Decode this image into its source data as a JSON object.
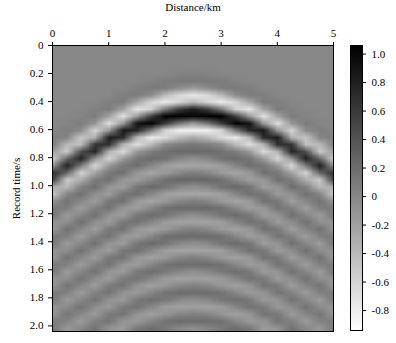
{
  "chart_data": {
    "type": "heatmap",
    "xlabel": "Distance/km",
    "ylabel": "Record time/s",
    "x": [
      0,
      0.25,
      0.5,
      0.75,
      1,
      1.25,
      1.5,
      1.75,
      2,
      2.25,
      2.5,
      2.75,
      3,
      3.25,
      3.5,
      3.75,
      4,
      4.25,
      4.5,
      4.75,
      5
    ],
    "y": [
      0,
      0.05,
      0.1,
      0.15,
      0.2,
      0.25,
      0.3,
      0.35,
      0.4,
      0.45,
      0.5,
      0.55,
      0.6,
      0.65,
      0.7,
      0.75,
      0.8,
      0.85,
      0.9,
      0.95,
      1,
      1.05,
      1.1,
      1.15,
      1.2,
      1.25,
      1.3,
      1.35,
      1.4,
      1.45,
      1.5,
      1.55,
      1.6,
      1.65,
      1.7,
      1.75,
      1.8,
      1.85,
      1.9,
      1.95,
      2
    ],
    "values": [
      [
        0,
        0,
        0,
        0,
        0,
        0,
        0,
        0,
        0,
        0,
        0,
        0,
        0,
        0,
        0,
        0,
        0,
        0,
        0,
        0,
        0
      ],
      [
        0,
        0,
        0,
        0,
        0,
        0,
        0,
        0,
        0,
        0,
        0,
        0,
        0,
        0,
        0,
        0,
        0,
        0,
        0,
        0,
        0
      ],
      [
        0,
        0,
        0,
        0,
        0,
        0,
        0,
        0,
        0,
        0,
        0,
        0,
        0,
        0,
        0,
        0,
        0,
        0,
        0,
        0,
        0
      ],
      [
        0,
        0,
        0,
        0,
        0,
        0,
        0,
        0,
        0,
        0,
        0,
        0,
        0,
        0,
        0,
        0,
        0,
        0,
        0,
        0,
        0
      ],
      [
        0,
        0,
        0,
        0,
        0,
        0,
        0,
        0,
        0,
        0.03,
        0.05,
        0.03,
        0,
        0,
        0,
        0,
        0,
        0,
        0,
        0,
        0
      ],
      [
        0,
        0,
        0,
        0,
        0,
        0,
        0,
        0.03,
        0.08,
        0.11,
        0.11,
        0.11,
        0.08,
        0.03,
        0,
        0,
        0,
        0,
        0,
        0,
        0
      ],
      [
        0,
        0,
        0,
        0,
        0,
        0,
        0.06,
        0.1,
        0.07,
        -0.04,
        -0.15,
        -0.04,
        0.07,
        0.1,
        0.06,
        0,
        0,
        0,
        0,
        0,
        0
      ],
      [
        0,
        0,
        0,
        0,
        0,
        0.06,
        0.09,
        -0.04,
        -0.4,
        -0.66,
        -0.77,
        -0.66,
        -0.4,
        -0.04,
        0.09,
        0.06,
        0,
        0,
        0,
        0,
        0
      ],
      [
        0,
        0,
        0,
        0,
        0.06,
        0.09,
        -0.24,
        -0.63,
        -0.81,
        -0.61,
        -0.41,
        -0.61,
        -0.81,
        -0.63,
        -0.24,
        0.09,
        0.06,
        0,
        0,
        0,
        0
      ],
      [
        0,
        0,
        0,
        0.04,
        0.08,
        -0.23,
        -0.75,
        -0.58,
        0.12,
        0.6,
        0.83,
        0.6,
        0.12,
        -0.58,
        -0.75,
        -0.23,
        0.08,
        0.04,
        0,
        0,
        0
      ],
      [
        0,
        0,
        0.02,
        0.09,
        -0.22,
        -0.71,
        -0.14,
        0.57,
        1.08,
        1.1,
        1.0,
        1.1,
        1.08,
        0.57,
        -0.14,
        -0.71,
        -0.22,
        0.09,
        0.02,
        0,
        0
      ],
      [
        0,
        0.01,
        0.08,
        -0.12,
        -0.68,
        -0.13,
        0.9,
        1.04,
        0.59,
        0.12,
        -0.15,
        0.12,
        0.59,
        1.04,
        0.9,
        -0.13,
        -0.68,
        -0.12,
        0.08,
        0.01,
        0
      ],
      [
        0,
        0.07,
        -0.03,
        -0.6,
        -0.12,
        0.86,
        0.75,
        0.11,
        -0.6,
        -0.82,
        -0.83,
        -0.82,
        -0.6,
        0.11,
        0.75,
        0.86,
        -0.12,
        -0.6,
        -0.03,
        0.07,
        0
      ],
      [
        0.05,
        0.02,
        -0.5,
        -0.32,
        0.82,
        0.71,
        -0.37,
        -0.78,
        -0.65,
        -0.41,
        -0.27,
        -0.41,
        -0.65,
        -0.78,
        -0.37,
        0.71,
        0.82,
        -0.32,
        -0.5,
        0.02,
        0.05
      ],
      [
        0.07,
        -0.39,
        -0.46,
        0.65,
        0.68,
        -0.35,
        -0.69,
        -0.39,
        -0.04,
        0.07,
        0.12,
        0.07,
        -0.04,
        -0.39,
        -0.69,
        -0.35,
        0.68,
        0.65,
        -0.46,
        -0.39,
        0.07
      ],
      [
        -0.18,
        -0.54,
        0.45,
        0.78,
        -0.34,
        -0.66,
        -0.14,
        0.07,
        0.18,
        0.23,
        0.24,
        0.23,
        0.18,
        0.07,
        -0.14,
        -0.66,
        -0.34,
        0.78,
        0.45,
        -0.54,
        -0.18
      ],
      [
        -0.56,
        0.26,
        0.82,
        -0.12,
        -0.63,
        -0.13,
        0.14,
        0.22,
        0.16,
        0,
        -0.08,
        0,
        0.16,
        0.22,
        0.14,
        -0.13,
        -0.63,
        -0.12,
        0.82,
        0.26,
        -0.56
      ],
      [
        -0.1,
        0.82,
        0.09,
        -0.65,
        -0.12,
        0.13,
        0.19,
        0,
        -0.19,
        -0.25,
        -0.24,
        -0.25,
        -0.19,
        0,
        0.19,
        0.13,
        -0.12,
        -0.65,
        0.09,
        0.82,
        -0.1
      ],
      [
        0.68,
        0.26,
        -0.61,
        -0.21,
        0.12,
        0.18,
        -0.14,
        -0.24,
        -0.15,
        0,
        0.08,
        0,
        -0.15,
        -0.24,
        -0.14,
        0.18,
        0.12,
        -0.21,
        -0.61,
        0.26,
        0.68
      ],
      [
        0.56,
        -0.54,
        -0.3,
        0.09,
        0.17,
        -0.13,
        -0.18,
        0,
        0.19,
        0.25,
        0.24,
        0.25,
        0.19,
        0,
        -0.18,
        -0.13,
        0.17,
        0.09,
        -0.3,
        -0.54,
        0.56
      ],
      [
        -0.28,
        -0.39,
        0.05,
        0.19,
        -0.12,
        -0.17,
        0.14,
        0.24,
        0.15,
        0,
        -0.08,
        0,
        0.15,
        0.24,
        0.14,
        -0.17,
        -0.12,
        0.19,
        0.05,
        -0.39,
        -0.28
      ],
      [
        -0.52,
        0.02,
        0.17,
        -0.06,
        -0.16,
        0.13,
        0.18,
        0,
        -0.19,
        -0.25,
        -0.24,
        -0.25,
        -0.19,
        0,
        0.18,
        0.13,
        -0.16,
        -0.06,
        0.17,
        0.02,
        -0.52
      ],
      [
        -0.1,
        0.16,
        0,
        -0.19,
        0.12,
        0.17,
        -0.14,
        -0.24,
        -0.15,
        0,
        0.07,
        0,
        -0.15,
        -0.24,
        -0.14,
        0.17,
        0.12,
        -0.19,
        0,
        0.16,
        -0.1
      ],
      [
        0.1,
        0.07,
        -0.19,
        0.06,
        0.16,
        -0.13,
        -0.18,
        0,
        0.18,
        0.23,
        0.22,
        0.23,
        0.18,
        0,
        -0.18,
        -0.13,
        0.16,
        0.06,
        -0.19,
        0.07,
        0.1
      ],
      [
        0.14,
        -0.17,
        0,
        0.19,
        -0.12,
        -0.17,
        0.13,
        0.22,
        0.14,
        0,
        -0.07,
        0,
        0.14,
        0.22,
        0.13,
        -0.17,
        -0.12,
        0.19,
        0,
        -0.17,
        0.14
      ],
      [
        -0.1,
        -0.06,
        0.19,
        -0.06,
        -0.16,
        0.12,
        0.17,
        0,
        -0.18,
        -0.23,
        -0.22,
        -0.23,
        -0.18,
        0,
        0.17,
        0.12,
        -0.16,
        -0.06,
        0.19,
        -0.06,
        -0.1
      ],
      [
        -0.14,
        0.17,
        0,
        -0.19,
        0.11,
        0.16,
        -0.13,
        -0.22,
        -0.14,
        0,
        0.07,
        0,
        -0.14,
        -0.22,
        -0.13,
        0.16,
        0.11,
        -0.19,
        0,
        0.17,
        -0.14
      ],
      [
        0.1,
        0.06,
        -0.19,
        0.05,
        0.16,
        -0.12,
        -0.17,
        0,
        0.18,
        0.23,
        0.22,
        0.23,
        0.18,
        0,
        -0.17,
        -0.12,
        0.16,
        0.05,
        -0.19,
        0.06,
        0.1
      ],
      [
        0.14,
        -0.17,
        0,
        0.17,
        -0.11,
        -0.16,
        0.13,
        0.22,
        0.14,
        0,
        -0.07,
        0,
        0.14,
        0.22,
        0.13,
        -0.16,
        -0.11,
        0.17,
        0,
        -0.17,
        0.14
      ],
      [
        -0.1,
        -0.05,
        0.17,
        -0.05,
        -0.16,
        0.12,
        0.17,
        0,
        -0.18,
        -0.23,
        -0.22,
        -0.23,
        -0.18,
        0,
        0.17,
        0.12,
        -0.16,
        -0.05,
        0.17,
        -0.05,
        -0.1
      ],
      [
        -0.14,
        0.16,
        0,
        -0.17,
        0.11,
        0.16,
        -0.13,
        -0.22,
        -0.14,
        0,
        0.06,
        0,
        -0.14,
        -0.22,
        -0.13,
        0.16,
        0.11,
        -0.17,
        0,
        0.16,
        -0.14
      ],
      [
        0.1,
        0.05,
        -0.17,
        0.05,
        0.16,
        -0.12,
        -0.17,
        0,
        0.16,
        0.21,
        0.2,
        0.21,
        0.16,
        0,
        -0.17,
        -0.12,
        0.16,
        0.05,
        -0.17,
        0.05,
        0.1
      ],
      [
        0.13,
        -0.16,
        0,
        0.17,
        -0.11,
        -0.16,
        0.11,
        0.2,
        0.12,
        0,
        -0.06,
        0,
        0.12,
        0.2,
        0.11,
        -0.16,
        -0.11,
        0.17,
        0,
        -0.16,
        0.13
      ],
      [
        -0.1,
        -0.05,
        0.17,
        -0.05,
        -0.16,
        0.1,
        0.15,
        0,
        -0.16,
        -0.21,
        -0.2,
        -0.21,
        -0.16,
        0,
        0.15,
        0.1,
        -0.16,
        -0.05,
        0.17,
        -0.05,
        -0.1
      ],
      [
        -0.13,
        0.16,
        0,
        -0.17,
        0.1,
        0.15,
        -0.11,
        -0.2,
        -0.12,
        0,
        0.06,
        0,
        -0.12,
        -0.2,
        -0.11,
        0.15,
        0.1,
        -0.17,
        0,
        0.16,
        -0.13
      ],
      [
        0.1,
        0.05,
        -0.17,
        0.05,
        0.14,
        -0.1,
        -0.15,
        0,
        0.16,
        0.21,
        0.2,
        0.21,
        0.16,
        0,
        -0.15,
        -0.1,
        0.14,
        0.05,
        -0.17,
        0.05,
        0.1
      ],
      [
        0.13,
        -0.16,
        0,
        0.16,
        -0.1,
        -0.15,
        0.11,
        0.2,
        0.12,
        0,
        -0.06,
        0,
        0.12,
        0.2,
        0.11,
        -0.15,
        -0.1,
        0.16,
        0,
        -0.16,
        0.13
      ],
      [
        -0.1,
        -0.04,
        0.16,
        -0.05,
        -0.14,
        0.1,
        0.15,
        0,
        -0.16,
        -0.21,
        -0.2,
        -0.21,
        -0.16,
        0,
        0.15,
        0.1,
        -0.14,
        -0.05,
        0.16,
        -0.04,
        -0.1
      ],
      [
        -0.13,
        0.14,
        0,
        -0.16,
        0.1,
        0.15,
        -0.11,
        -0.2,
        -0.12,
        0,
        0.06,
        0,
        -0.12,
        -0.2,
        -0.11,
        0.15,
        0.1,
        -0.16,
        0,
        0.14,
        -0.13
      ],
      [
        0.08,
        0.04,
        -0.16,
        0.05,
        0.14,
        -0.1,
        -0.15,
        0,
        0.16,
        0.21,
        0.2,
        0.21,
        0.16,
        0,
        -0.15,
        -0.1,
        0.14,
        0.05,
        -0.16,
        0.04,
        0.08
      ],
      [
        0.12,
        -0.14,
        0,
        0.16,
        -0.1,
        -0.15,
        0.11,
        0.2,
        0.12,
        0,
        -0.06,
        0,
        0.12,
        0.2,
        0.11,
        -0.15,
        -0.1,
        0.16,
        0,
        -0.14,
        0.12
      ]
    ],
    "xlim": [
      0,
      5
    ],
    "xticks": [
      0,
      1,
      2,
      3,
      4,
      5
    ],
    "ylim": [
      0,
      2.04
    ],
    "yticks": [
      0,
      0.2,
      0.4,
      0.6,
      0.8,
      {
        "value": 1,
        "label": "1.0"
      },
      1.2,
      1.4,
      1.6,
      1.8,
      {
        "value": 2,
        "label": "2.0"
      }
    ],
    "colorbar": {
      "range": [
        -0.94,
        1.06
      ],
      "ticks": [
        -0.8,
        -0.6,
        -0.4,
        -0.2,
        0,
        0.2,
        0.4,
        0.6,
        0.8,
        {
          "value": 1,
          "label": "1.0"
        }
      ],
      "colors": [
        "#ffffff",
        "#000000"
      ]
    }
  }
}
